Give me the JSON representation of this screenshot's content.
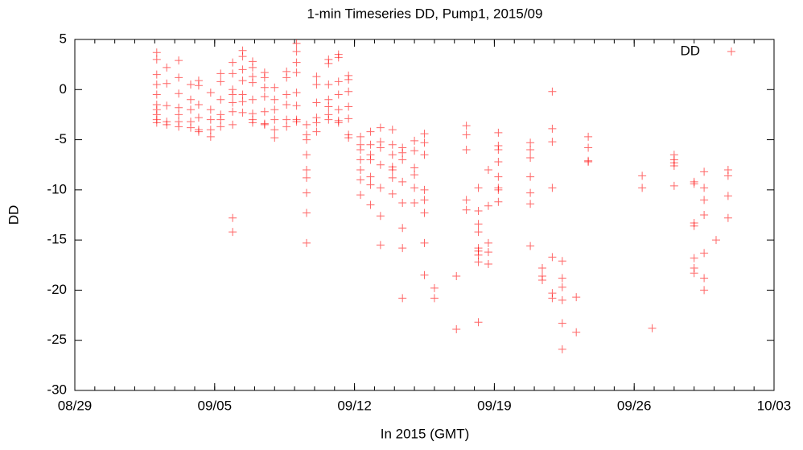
{
  "chart_data": {
    "type": "scatter",
    "title": "1-min Timeseries DD, Pump1, 2015/09",
    "xlabel": "In 2015 (GMT)",
    "ylabel": "DD",
    "legend": "top right",
    "xlim": [
      0,
      35
    ],
    "xticks": [
      {
        "value": 0,
        "label": "08/29"
      },
      {
        "value": 7,
        "label": "09/05"
      },
      {
        "value": 14,
        "label": "09/12"
      },
      {
        "value": 21,
        "label": "09/19"
      },
      {
        "value": 28,
        "label": "09/26"
      },
      {
        "value": 35,
        "label": "10/03"
      }
    ],
    "ylim": [
      -30,
      5
    ],
    "yticks": [
      -30,
      -25,
      -20,
      -15,
      -10,
      -5,
      0,
      5
    ],
    "series": [
      {
        "name": "DD",
        "color": "#ff0000",
        "x": [
          4.1,
          4.1,
          4.1,
          4.1,
          4.1,
          4.1,
          4.1,
          4.1,
          4.1,
          4.1,
          4.6,
          4.6,
          4.6,
          4.6,
          4.6,
          5.2,
          5.2,
          5.2,
          5.2,
          5.2,
          5.2,
          5.2,
          5.8,
          5.8,
          5.8,
          5.8,
          5.8,
          6.2,
          6.2,
          6.2,
          6.2,
          6.2,
          6.2,
          6.8,
          6.8,
          6.8,
          6.8,
          6.8,
          7.3,
          7.3,
          7.3,
          7.3,
          7.3,
          7.3,
          7.9,
          7.9,
          7.9,
          7.9,
          7.9,
          7.9,
          7.9,
          7.9,
          7.9,
          8.4,
          8.4,
          8.4,
          8.4,
          8.4,
          8.4,
          8.4,
          8.9,
          8.9,
          8.9,
          8.9,
          8.9,
          8.9,
          8.9,
          8.9,
          9.5,
          9.5,
          9.5,
          9.5,
          9.5,
          9.5,
          9.5,
          10,
          10,
          10,
          10,
          10,
          10,
          10.6,
          10.6,
          10.6,
          10.6,
          10.6,
          10.6,
          11.1,
          11.1,
          11.1,
          11.1,
          11.1,
          11.1,
          11.1,
          11.1,
          11.6,
          11.6,
          11.6,
          11.6,
          11.6,
          11.6,
          11.6,
          11.6,
          11.6,
          12.1,
          12.1,
          12.1,
          12.1,
          12.1,
          12.1,
          12.7,
          12.7,
          12.7,
          12.7,
          12.7,
          12.7,
          12.7,
          13.2,
          13.2,
          13.2,
          13.2,
          13.2,
          13.2,
          13.2,
          13.7,
          13.7,
          13.7,
          13.7,
          13.7,
          13.7,
          13.7,
          14.3,
          14.3,
          14.3,
          14.3,
          14.3,
          14.3,
          14.3,
          14.8,
          14.8,
          14.8,
          14.8,
          14.8,
          14.8,
          14.8,
          15.3,
          15.3,
          15.3,
          15.3,
          15.3,
          15.3,
          15.3,
          15.9,
          15.9,
          15.9,
          15.9,
          15.9,
          15.9,
          15.9,
          16.4,
          16.4,
          16.4,
          16.4,
          16.4,
          16.4,
          16.4,
          16.4,
          17,
          17,
          17,
          17,
          17,
          17,
          17.5,
          17.5,
          17.5,
          17.5,
          17.5,
          17.5,
          17.5,
          17.5,
          18,
          18,
          19.1,
          19.1,
          19.6,
          19.6,
          19.6,
          19.6,
          19.6,
          20.2,
          20.2,
          20.2,
          20.2,
          20.2,
          20.2,
          20.2,
          20.2,
          20.2,
          20.7,
          20.7,
          20.7,
          20.7,
          20.7,
          21.2,
          21.2,
          21.2,
          21.2,
          21.2,
          21.2,
          21.2,
          21.2,
          22.8,
          22.8,
          22.8,
          22.8,
          22.8,
          22.8,
          22.8,
          23.4,
          23.4,
          23.4,
          23.9,
          23.9,
          23.9,
          23.9,
          23.9,
          23.9,
          23.9,
          24.4,
          24.4,
          24.4,
          24.4,
          24.4,
          24.4,
          25.1,
          25.1,
          25.7,
          25.7,
          25.7,
          25.7,
          28.4,
          28.4,
          28.9,
          30,
          30,
          30,
          30,
          30,
          31,
          31,
          31,
          31,
          31,
          31,
          31,
          31.5,
          31.5,
          31.5,
          31.5,
          31.5,
          31.5,
          31.5,
          32.1,
          32.7,
          32.7,
          32.7,
          32.7
        ],
        "values": [
          3.7,
          3,
          1.5,
          0.5,
          -0.5,
          -1.5,
          -2,
          -2.5,
          -3,
          -3.3,
          2.2,
          0.6,
          -1.6,
          -3.2,
          -3.5,
          2.9,
          1.2,
          -0.4,
          -1.8,
          -2.5,
          -3.2,
          -3.7,
          0.5,
          -1,
          -2,
          -3.2,
          -3.8,
          0.9,
          0.4,
          -1.5,
          -2.8,
          -4,
          -4.2,
          -0.3,
          -2,
          -3,
          -4,
          -4.7,
          1.6,
          0.8,
          -1,
          -2.5,
          -3,
          -3.7,
          2.7,
          1.6,
          0,
          -0.5,
          -1.3,
          -2.2,
          -3.5,
          -12.8,
          -14.2,
          3.9,
          3.3,
          2,
          0.9,
          -0.5,
          -1.2,
          -2.3,
          2.8,
          2.2,
          1.3,
          0.7,
          -1,
          -2.4,
          -3,
          -3.3,
          1.7,
          1.2,
          0.2,
          -0.7,
          -2.2,
          -3.4,
          -3.5,
          0.2,
          -1,
          -2,
          -3,
          -4,
          -4.8,
          1.8,
          1.2,
          -0.5,
          -1.5,
          -3,
          -3.7,
          4.6,
          3.8,
          2.7,
          1.7,
          -0.3,
          -1.6,
          -3,
          -3.2,
          -3.5,
          -4.5,
          -5,
          -6.5,
          -8,
          -8.8,
          -10.3,
          -12.3,
          -15.3,
          1.3,
          0.5,
          -1.3,
          -2.8,
          -3.3,
          -4.2,
          3,
          2.6,
          0.5,
          -1,
          -1.7,
          -2.5,
          -3,
          3.5,
          3.2,
          0.8,
          -0.5,
          -2,
          -3.1,
          -3.3,
          1.4,
          1,
          -0.2,
          -1.7,
          -2.9,
          -4.5,
          -4.8,
          -4.7,
          -5.5,
          -6,
          -7,
          -8,
          -9,
          -10.5,
          -4.2,
          -5.5,
          -6.5,
          -7,
          -8.7,
          -9.5,
          -11.5,
          -3.8,
          -5.2,
          -5.8,
          -7.5,
          -9.8,
          -12.6,
          -15.5,
          -4,
          -5.5,
          -6.5,
          -7.7,
          -8,
          -8.8,
          -10.4,
          -5.8,
          -6.3,
          -7,
          -9.2,
          -11.3,
          -13.8,
          -15.8,
          -20.8,
          -5.1,
          -6.1,
          -7.8,
          -8.5,
          -9.8,
          -11.3,
          -4.4,
          -5.3,
          -6.5,
          -10,
          -11,
          -12.3,
          -15.3,
          -18.5,
          -19.8,
          -20.8,
          -18.6,
          -23.9,
          -3.6,
          -4.5,
          -6,
          -11,
          -12,
          -9.8,
          -12.1,
          -13.4,
          -14.2,
          -15.8,
          -16.1,
          -16.5,
          -17.2,
          -23.2,
          -8,
          -11.6,
          -15.3,
          -16.2,
          -17.4,
          -4.3,
          -5.6,
          -6,
          -7.2,
          -8.7,
          -9.8,
          -10,
          -11.2,
          -5.3,
          -6,
          -6.8,
          -8.7,
          -10.3,
          -11.4,
          -15.6,
          -17.8,
          -18.6,
          -19,
          -0.2,
          -3.9,
          -5.2,
          -9.8,
          -16.7,
          -20.3,
          -20.8,
          -17.1,
          -18.8,
          -19.7,
          -21,
          -23.3,
          -25.9,
          -20.7,
          -24.2,
          -4.7,
          -5.8,
          -7.1,
          -7.2,
          -8.6,
          -9.8,
          -23.8,
          -6.5,
          -7,
          -7.3,
          -7.6,
          -9.6,
          -9.2,
          -9.4,
          -13.3,
          -13.6,
          -16.8,
          -17.8,
          -18.3,
          -8.2,
          -9.8,
          -11,
          -12.5,
          -16.3,
          -18.8,
          -20,
          -15,
          -8,
          -8.6,
          -10.6,
          -12.8
        ]
      }
    ]
  }
}
